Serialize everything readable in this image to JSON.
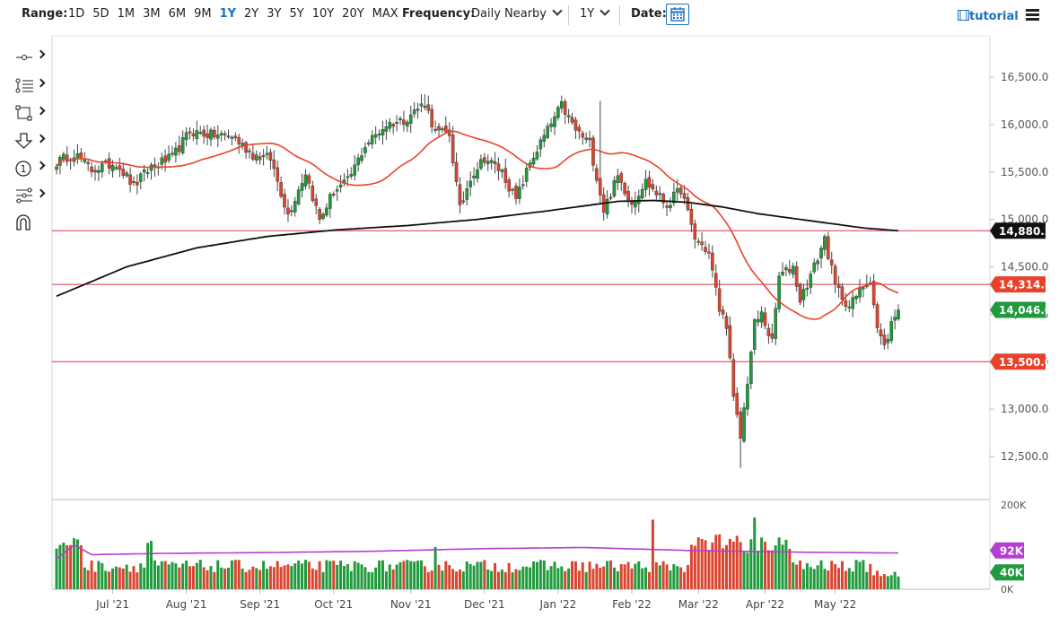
{
  "toolbar": {
    "range_label": "Range:",
    "ranges": [
      "1D",
      "5D",
      "1M",
      "3M",
      "6M",
      "9M",
      "1Y",
      "2Y",
      "3Y",
      "5Y",
      "10Y",
      "20Y",
      "MAX"
    ],
    "active_range": "1Y",
    "frequency_label": "Frequency:",
    "frequency_value": "Daily Nearby",
    "period_value": "1Y",
    "date_label": "Date:",
    "tutorial_label": "tutorial"
  },
  "tools": [
    "crosshair-tool-icon",
    "fibonacci-tool-icon",
    "rectangle-tool-icon",
    "arrow-down-tool-icon",
    "number-label-tool-icon",
    "pitchfork-tool-icon",
    "magnet-tool-icon"
  ],
  "colors": {
    "up": "#1f9a3c",
    "down": "#d9452f",
    "ma_fast": "#e8432a",
    "ma_slow": "#111111",
    "volume_ma": "#b43fd1",
    "hline": "#d9334a",
    "accent": "#1a6fc4"
  },
  "chart_data": {
    "type": "candlestick",
    "x_labels": [
      "Jul '21",
      "Aug '21",
      "Sep '21",
      "Oct '21",
      "Nov '21",
      "Dec '21",
      "Jan '22",
      "Feb '22",
      "Mar '22",
      "Apr '22",
      "May '22"
    ],
    "y_ticks": [
      "16,500.0",
      "16,000.0",
      "15,500.0",
      "15,000.0",
      "14,500.0",
      "14,000.0",
      "13,500.0",
      "13,000.0",
      "12,500.0"
    ],
    "y_range": [
      12300,
      16750
    ],
    "horizontal_lines": [
      14880.2,
      14314.6,
      13500.0
    ],
    "price_labels": [
      {
        "text": "14,880.2",
        "color": "#111111"
      },
      {
        "text": "14,314.6",
        "color": "#e8432a"
      },
      {
        "text": "14,046.0",
        "color": "#1f9a3c"
      },
      {
        "text": "13,500.0",
        "color": "#e8432a"
      }
    ],
    "anchors": [
      [
        0,
        15600
      ],
      [
        5,
        15700
      ],
      [
        10,
        15520
      ],
      [
        17,
        15600
      ],
      [
        22,
        15350
      ],
      [
        27,
        15560
      ],
      [
        33,
        15650
      ],
      [
        38,
        15930
      ],
      [
        44,
        15890
      ],
      [
        50,
        15880
      ],
      [
        56,
        15680
      ],
      [
        61,
        15640
      ],
      [
        66,
        15050
      ],
      [
        71,
        15500
      ],
      [
        75,
        14990
      ],
      [
        79,
        15300
      ],
      [
        83,
        15400
      ],
      [
        88,
        15780
      ],
      [
        94,
        16000
      ],
      [
        99,
        16050
      ],
      [
        105,
        16230
      ],
      [
        108,
        15920
      ],
      [
        112,
        15900
      ],
      [
        115,
        15100
      ],
      [
        118,
        15450
      ],
      [
        122,
        15650
      ],
      [
        127,
        15500
      ],
      [
        131,
        15200
      ],
      [
        135,
        15600
      ],
      [
        140,
        15940
      ],
      [
        144,
        16200
      ],
      [
        148,
        15940
      ],
      [
        152,
        15800
      ],
      [
        156,
        15100
      ],
      [
        160,
        15450
      ],
      [
        164,
        15180
      ],
      [
        168,
        15400
      ],
      [
        174,
        15150
      ],
      [
        178,
        15320
      ],
      [
        182,
        14800
      ],
      [
        186,
        14650
      ],
      [
        189,
        14050
      ],
      [
        191,
        13900
      ],
      [
        193,
        13100
      ],
      [
        195,
        12700
      ],
      [
        197,
        13300
      ],
      [
        199,
        13900
      ],
      [
        201,
        14000
      ],
      [
        204,
        13700
      ],
      [
        206,
        14400
      ],
      [
        210,
        14500
      ],
      [
        212,
        14150
      ],
      [
        216,
        14500
      ],
      [
        219,
        14800
      ],
      [
        222,
        14300
      ],
      [
        226,
        14080
      ],
      [
        230,
        14300
      ],
      [
        232,
        14380
      ],
      [
        234,
        13850
      ],
      [
        236,
        13650
      ],
      [
        238,
        13900
      ],
      [
        240,
        14046
      ]
    ],
    "volume": {
      "y_ticks": [
        "200K",
        "0K"
      ],
      "labels": [
        {
          "text": "92K",
          "color": "#b43fd1"
        },
        {
          "text": "40K",
          "color": "#1f9a3c"
        }
      ]
    }
  }
}
